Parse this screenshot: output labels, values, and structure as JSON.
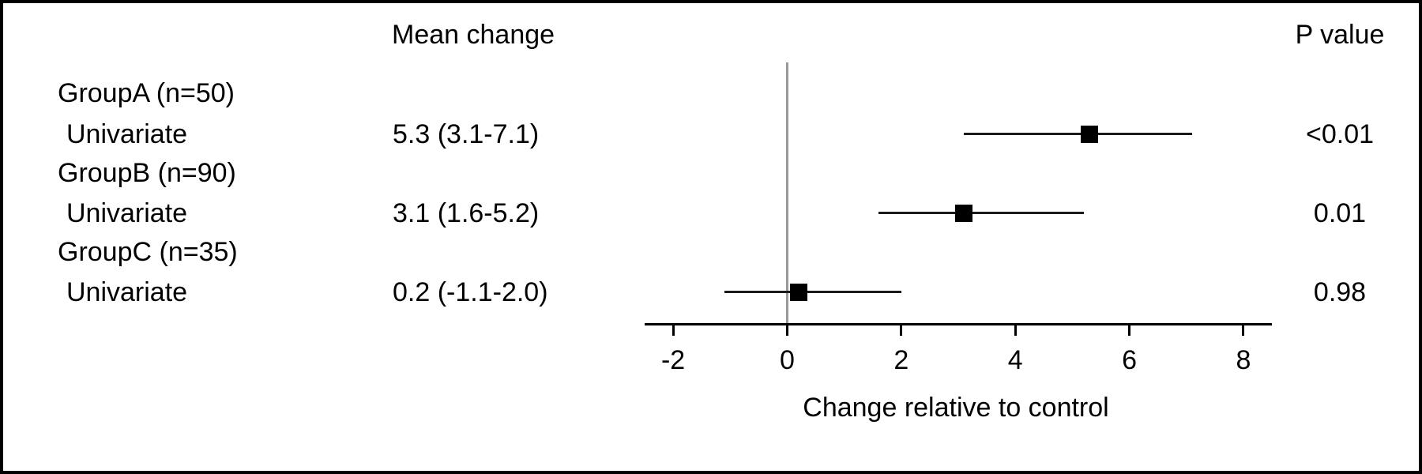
{
  "figure": {
    "columns": {
      "mean_change_header": "Mean change",
      "p_value_header": "P value"
    },
    "rows": [
      {
        "group_label": "GroupA (n=50)",
        "analysis_label": "Univariate",
        "mean_change": "5.3 (3.1-7.1)",
        "p_value": "<0.01"
      },
      {
        "group_label": "GroupB (n=90)",
        "analysis_label": "Univariate",
        "mean_change": "3.1 (1.6-5.2)",
        "p_value": "0.01"
      },
      {
        "group_label": "GroupC (n=35)",
        "analysis_label": "Univariate",
        "mean_change": "0.2 (-1.1-2.0)",
        "p_value": "0.98"
      }
    ],
    "xlabel": "Change relative to control"
  },
  "chart_data": {
    "type": "scatter",
    "subtype": "forest-plot",
    "title": "",
    "xlabel": "Change relative to control",
    "ylabel": "",
    "xlim": [
      -2.5,
      8.5
    ],
    "x_ticks": [
      -2,
      0,
      2,
      4,
      6,
      8
    ],
    "reference_line_x": 0,
    "grid": false,
    "legend": null,
    "rows": [
      {
        "group": "GroupA",
        "n": 50,
        "analysis": "Univariate",
        "mean": 5.3,
        "ci_low": 3.1,
        "ci_high": 7.1,
        "p_value": "<0.01",
        "mean_label": "5.3 (3.1-7.1)"
      },
      {
        "group": "GroupB",
        "n": 90,
        "analysis": "Univariate",
        "mean": 3.1,
        "ci_low": 1.6,
        "ci_high": 5.2,
        "p_value": "0.01",
        "mean_label": "3.1 (1.6-5.2)"
      },
      {
        "group": "GroupC",
        "n": 35,
        "analysis": "Univariate",
        "mean": 0.2,
        "ci_low": -1.1,
        "ci_high": 2.0,
        "p_value": "0.98",
        "mean_label": "0.2 (-1.1-2.0)"
      }
    ],
    "colors": {
      "marker": "#000000",
      "ci_bar": "#1a1a1a",
      "axis": "#000000",
      "reference_line": "#999999",
      "text": "#000000",
      "background": "#ffffff"
    }
  }
}
